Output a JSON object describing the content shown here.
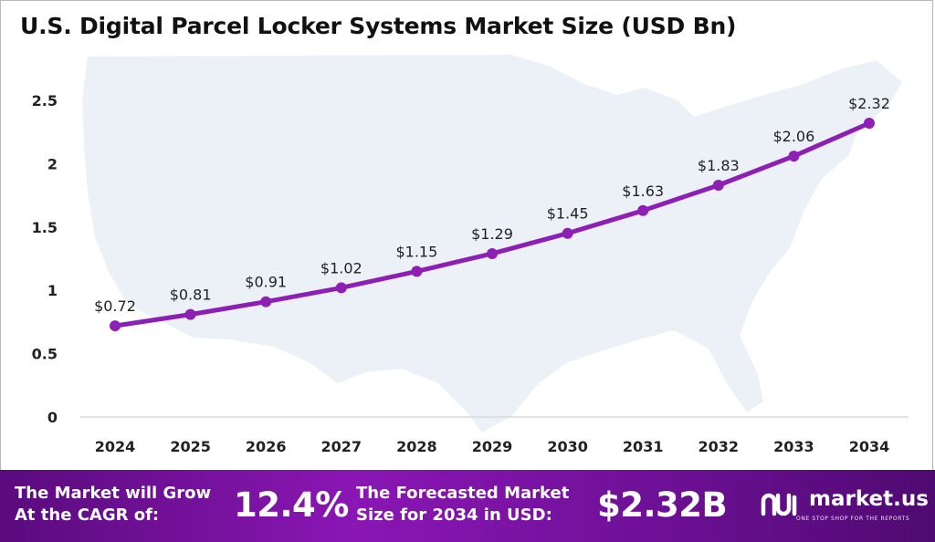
{
  "chart_data": {
    "type": "line",
    "title": "U.S. Digital Parcel Locker Systems Market Size (USD Bn)",
    "xlabel": "",
    "ylabel": "",
    "categories": [
      "2024",
      "2025",
      "2026",
      "2027",
      "2028",
      "2029",
      "2030",
      "2031",
      "2032",
      "2033",
      "2034"
    ],
    "series": [
      {
        "values": [
          0.72,
          0.81,
          0.91,
          1.02,
          1.15,
          1.29,
          1.45,
          1.63,
          1.83,
          2.06,
          2.32
        ]
      }
    ],
    "data_labels": [
      "$0.72",
      "$0.81",
      "$0.91",
      "$1.02",
      "$1.15",
      "$1.29",
      "$1.45",
      "$1.63",
      "$1.83",
      "$2.06",
      "$2.32"
    ],
    "ylim": [
      0,
      2.5
    ],
    "yticks": [
      0,
      0.5,
      1,
      1.5,
      2,
      2.5
    ],
    "ytick_labels": [
      "0",
      "0.5",
      "1",
      "1.5",
      "2",
      "2.5"
    ],
    "grid": false,
    "legend": "none",
    "line_color": "#8e1fb4",
    "background_map": "united-states-map"
  },
  "banner": {
    "cagr_label_line1": "The Market will Grow",
    "cagr_label_line2": "At the CAGR of:",
    "cagr_value": "12.4%",
    "forecast_label_line1": "The Forecasted Market",
    "forecast_label_line2": "Size for 2034 in USD:",
    "forecast_value": "$2.32B"
  },
  "brand": {
    "name": "market.us",
    "tagline": "ONE STOP SHOP FOR THE REPORTS",
    "icon": "market-us-logo-icon"
  },
  "colors": {
    "accent": "#8e1fb4",
    "banner": "#7a12a4",
    "map": "#e4ecf3"
  }
}
